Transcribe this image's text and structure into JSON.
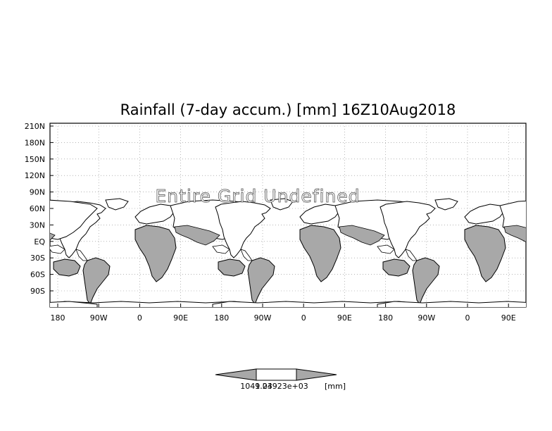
{
  "title": "Rainfall (7-day accum.) [mm] 16Z10Aug2018",
  "overlay_text": "Entire Grid Undefined",
  "y_ticks": [
    "210N",
    "180N",
    "150N",
    "120N",
    "90N",
    "60N",
    "30N",
    "EQ",
    "30S",
    "60S",
    "90S"
  ],
  "x_ticks": [
    "180",
    "90W",
    "0",
    "90E",
    "180",
    "90W",
    "0",
    "90E",
    "180",
    "90W",
    "0",
    "90E"
  ],
  "colorbar": {
    "labels": [
      "1049.23",
      "1.04923e+03",
      "[mm]"
    ]
  },
  "colors": {
    "land": "#ffffff",
    "shaded_region": "#a8a8a8",
    "outline": "#000000",
    "grid": "#888888"
  }
}
